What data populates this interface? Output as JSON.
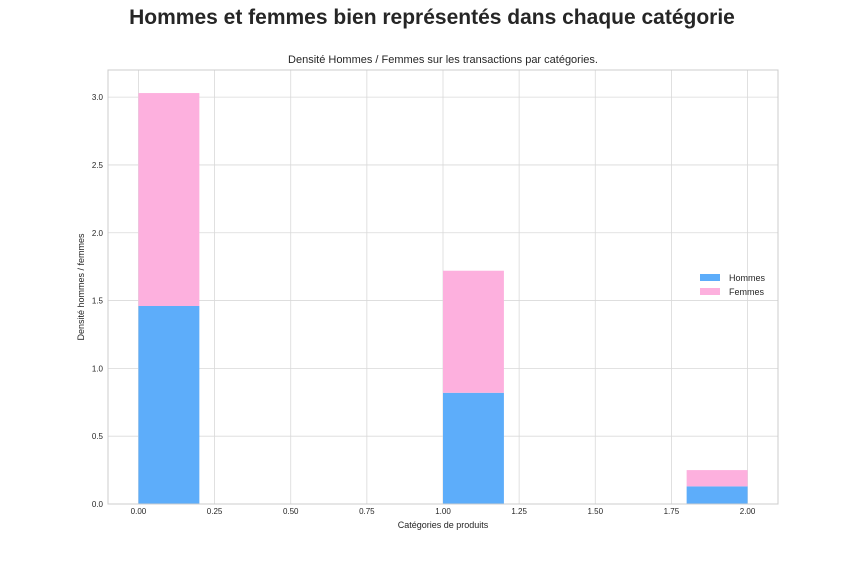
{
  "figure": {
    "suptitle": "Hommes et femmes bien représentés dans chaque catégorie"
  },
  "chart_data": {
    "type": "bar",
    "stacked": true,
    "title": "Densité Hommes / Femmes sur les transactions par catégories.",
    "xlabel": "Catégories de produits",
    "ylabel": "Densité hommes / femmes",
    "xlim": [
      -0.1,
      2.1
    ],
    "ylim": [
      0,
      3.2
    ],
    "xticks": [
      0.0,
      0.25,
      0.5,
      0.75,
      1.0,
      1.25,
      1.5,
      1.75,
      2.0
    ],
    "xtick_labels": [
      "0.00",
      "0.25",
      "0.50",
      "0.75",
      "1.00",
      "1.25",
      "1.50",
      "1.75",
      "2.00"
    ],
    "yticks": [
      0.0,
      0.5,
      1.0,
      1.5,
      2.0,
      2.5,
      3.0
    ],
    "ytick_labels": [
      "0.0",
      "0.5",
      "1.0",
      "1.5",
      "2.0",
      "2.5",
      "3.0"
    ],
    "grid": true,
    "legend_position": "center-right",
    "bins": [
      {
        "x0": 0.0,
        "x1": 0.2
      },
      {
        "x0": 1.0,
        "x1": 1.2
      },
      {
        "x0": 1.8,
        "x1": 2.0
      }
    ],
    "series": [
      {
        "name": "Hommes",
        "color": "#5DADFA",
        "values": [
          1.46,
          0.82,
          0.13
        ]
      },
      {
        "name": "Femmes",
        "color": "#FDB0DE",
        "values": [
          1.57,
          0.9,
          0.12
        ]
      }
    ]
  }
}
